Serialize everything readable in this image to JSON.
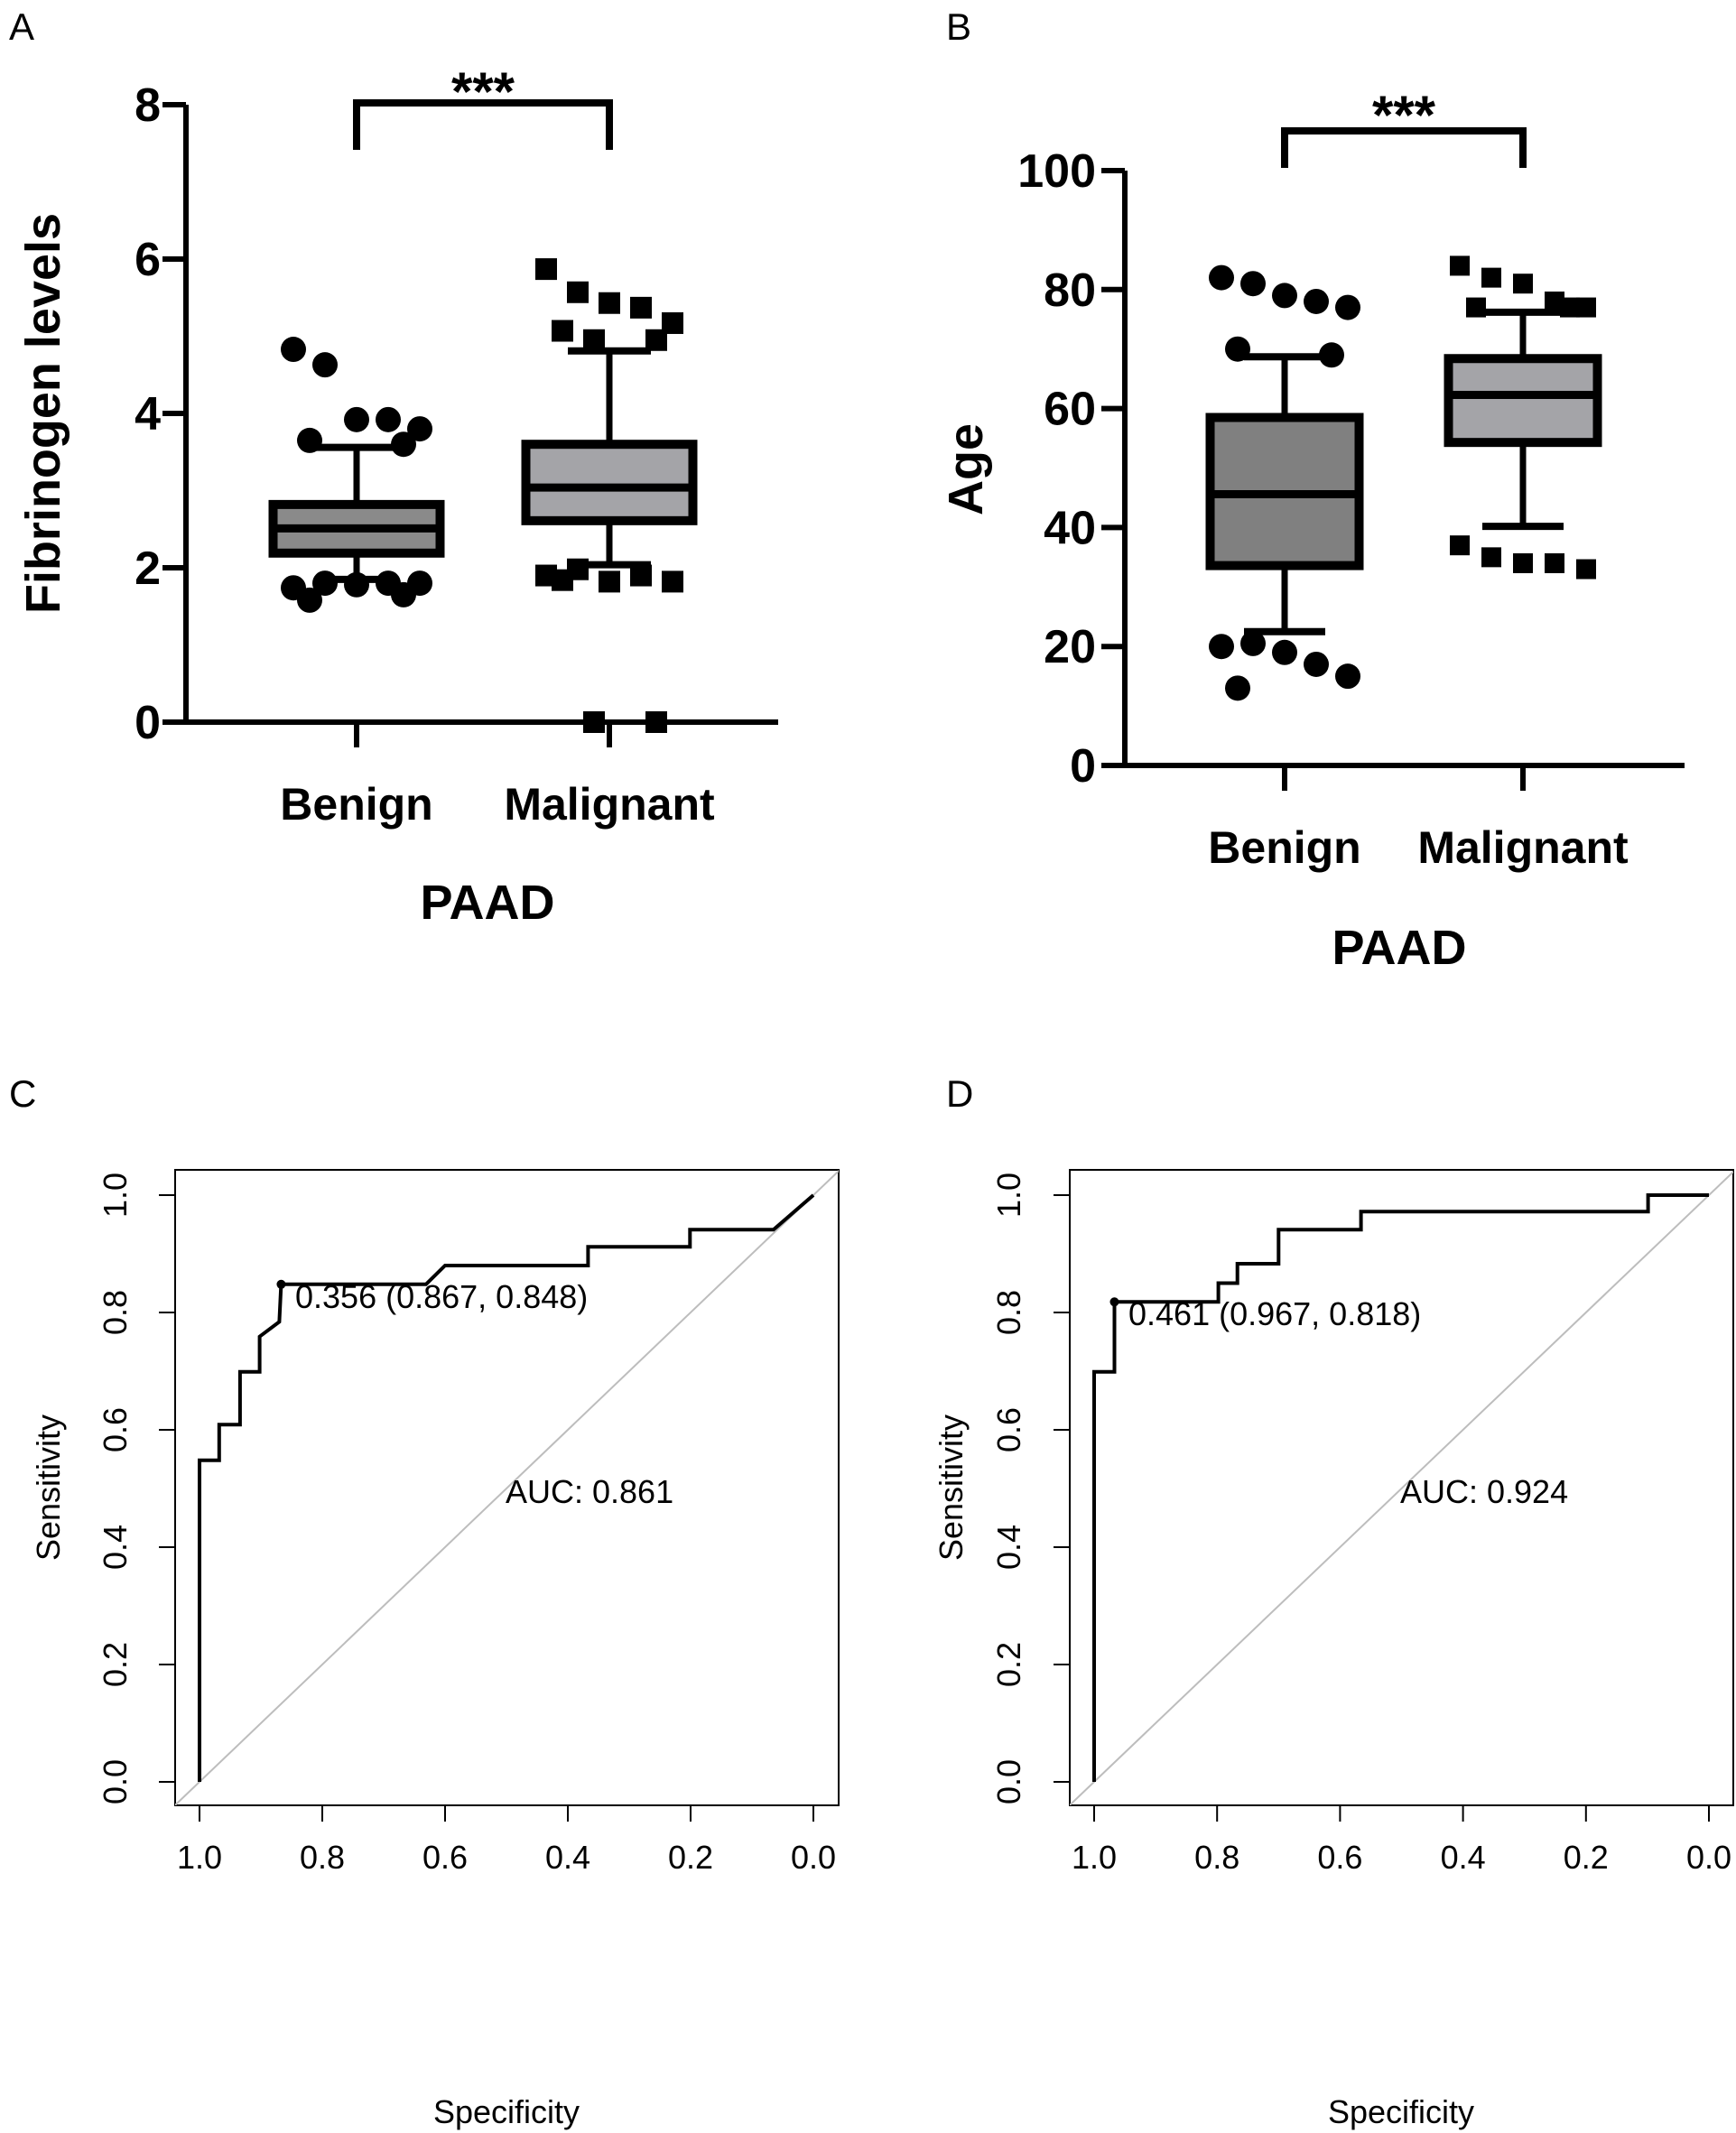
{
  "chart_data": [
    {
      "panel": "A",
      "type": "box",
      "title": "",
      "xlabel": "PAAD",
      "ylabel": "Fibrinogen levels",
      "ylim": [
        0,
        8
      ],
      "yticks": [
        0,
        2,
        4,
        6,
        8
      ],
      "categories": [
        "Benign",
        "Malignant"
      ],
      "significance": "***",
      "colors": {
        "Benign": "#8a8a8a",
        "Malignant": "#a4a4a8"
      },
      "boxes": [
        {
          "name": "Benign",
          "q1": 2.19,
          "median": 2.51,
          "q3": 2.82,
          "whisker_low": 1.85,
          "whisker_high": 3.56,
          "marker": "circle",
          "outliers": [
            4.83,
            4.63,
            3.92,
            3.92,
            3.8,
            3.65,
            3.6,
            1.74,
            1.8,
            1.78,
            1.8,
            1.8,
            1.58,
            1.65
          ]
        },
        {
          "name": "Malignant",
          "q1": 2.61,
          "median": 3.04,
          "q3": 3.6,
          "whisker_low": 2.04,
          "whisker_high": 4.81,
          "marker": "square",
          "outliers": [
            5.87,
            5.57,
            5.43,
            5.37,
            5.17,
            5.07,
            4.95,
            4.95,
            1.9,
            1.98,
            1.82,
            1.9,
            1.82,
            1.84,
            0.0,
            0.0
          ]
        }
      ]
    },
    {
      "panel": "B",
      "type": "box",
      "title": "",
      "xlabel": "PAAD",
      "ylabel": "Age",
      "ylim": [
        0,
        100
      ],
      "yticks": [
        0,
        20,
        40,
        60,
        80,
        100
      ],
      "categories": [
        "Benign",
        "Malignant"
      ],
      "significance": "***",
      "colors": {
        "Benign": "#808080",
        "Malignant": "#a4a4a8"
      },
      "boxes": [
        {
          "name": "Benign",
          "q1": 33.6,
          "median": 45.6,
          "q3": 58.5,
          "whisker_low": 22.5,
          "whisker_high": 68.7,
          "marker": "circle",
          "outliers": [
            82,
            81,
            79,
            78,
            77,
            70,
            69,
            20,
            20.5,
            19,
            17,
            15,
            13
          ]
        },
        {
          "name": "Malignant",
          "q1": 54.3,
          "median": 62.3,
          "q3": 68.4,
          "whisker_low": 40.2,
          "whisker_high": 76.2,
          "marker": "square",
          "outliers": [
            84,
            82,
            81,
            78,
            77,
            77,
            77,
            37,
            35,
            34,
            34,
            33
          ]
        }
      ]
    },
    {
      "panel": "C",
      "type": "line",
      "subtype": "roc",
      "xlabel": "Specificity",
      "ylabel": "Sensitivity",
      "xlim": [
        1.0,
        0.0
      ],
      "ylim": [
        0.0,
        1.0
      ],
      "xticks": [
        "1.0",
        "0.8",
        "0.6",
        "0.4",
        "0.2",
        "0.0"
      ],
      "yticks": [
        "0.0",
        "0.2",
        "0.4",
        "0.6",
        "0.8",
        "1.0"
      ],
      "auc_label": "AUC: 0.861",
      "threshold_label": "0.356 (0.867, 0.848)",
      "threshold_point": {
        "specificity": 0.867,
        "sensitivity": 0.848
      },
      "reference_line": true,
      "series": [
        {
          "name": "ROC",
          "specificity": [
            1.0,
            1.0,
            0.968,
            0.968,
            0.934,
            0.934,
            0.902,
            0.902,
            0.87,
            0.867,
            0.631,
            0.6,
            0.367,
            0.367,
            0.201,
            0.201,
            0.065,
            0.0
          ],
          "sensitivity": [
            0.0,
            0.548,
            0.548,
            0.609,
            0.609,
            0.699,
            0.699,
            0.759,
            0.784,
            0.848,
            0.848,
            0.88,
            0.88,
            0.912,
            0.912,
            0.941,
            0.941,
            1.0
          ]
        }
      ]
    },
    {
      "panel": "D",
      "type": "line",
      "subtype": "roc",
      "xlabel": "Specificity",
      "ylabel": "Sensitivity",
      "xlim": [
        1.0,
        0.0
      ],
      "ylim": [
        0.0,
        1.0
      ],
      "xticks": [
        "1.0",
        "0.8",
        "0.6",
        "0.4",
        "0.2",
        "0.0"
      ],
      "yticks": [
        "0.0",
        "0.2",
        "0.4",
        "0.6",
        "0.8",
        "1.0"
      ],
      "auc_label": "AUC: 0.924",
      "threshold_label": "0.461 (0.967, 0.818)",
      "threshold_point": {
        "specificity": 0.967,
        "sensitivity": 0.818
      },
      "reference_line": true,
      "series": [
        {
          "name": "ROC",
          "specificity": [
            1.0,
            1.0,
            0.967,
            0.967,
            0.798,
            0.798,
            0.767,
            0.767,
            0.7,
            0.7,
            0.566,
            0.566,
            0.099,
            0.099,
            0.0
          ],
          "sensitivity": [
            0.0,
            0.699,
            0.699,
            0.818,
            0.818,
            0.85,
            0.85,
            0.883,
            0.883,
            0.941,
            0.941,
            0.972,
            0.972,
            1.0,
            1.0
          ]
        }
      ]
    }
  ],
  "panels": {
    "A": {
      "label": "A"
    },
    "B": {
      "label": "B"
    },
    "C": {
      "label": "C"
    },
    "D": {
      "label": "D"
    }
  }
}
